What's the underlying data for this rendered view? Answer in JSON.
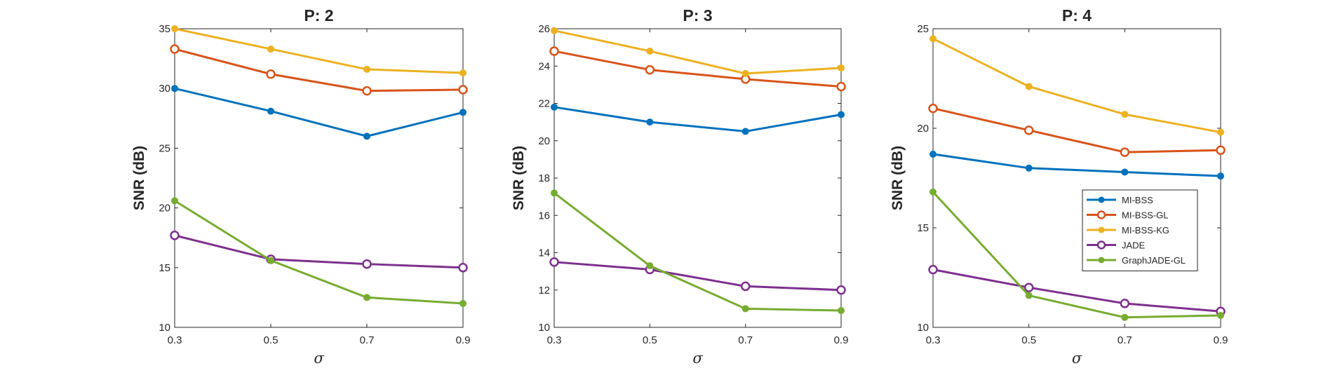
{
  "chart_data": [
    {
      "type": "line",
      "title": "P: 2",
      "xlabel": "σ",
      "ylabel": "SNR (dB)",
      "x": [
        0.3,
        0.5,
        0.7,
        0.9
      ],
      "xticks": [
        "0.3",
        "0.5",
        "0.7",
        "0.9"
      ],
      "ylim": [
        10,
        35
      ],
      "yticks": [
        10,
        15,
        20,
        25,
        30,
        35
      ],
      "grid": false,
      "series": [
        {
          "name": "MI-BSS",
          "color": "#0072BD",
          "marker": "dot",
          "values": [
            30.0,
            28.1,
            26.0,
            28.0
          ]
        },
        {
          "name": "MI-BSS-GL",
          "color": "#D95319",
          "marker": "circle",
          "values": [
            33.3,
            31.2,
            29.8,
            29.9
          ]
        },
        {
          "name": "MI-BSS-KG",
          "color": "#EDB120",
          "marker": "dot",
          "values": [
            35.0,
            33.3,
            31.6,
            31.3
          ]
        },
        {
          "name": "JADE",
          "color": "#7E2F8E",
          "marker": "circle",
          "values": [
            17.7,
            15.7,
            15.3,
            15.0
          ]
        },
        {
          "name": "GraphJADE-GL",
          "color": "#77AC30",
          "marker": "dot",
          "values": [
            20.6,
            15.6,
            12.5,
            12.0
          ]
        }
      ]
    },
    {
      "type": "line",
      "title": "P: 3",
      "xlabel": "σ",
      "ylabel": "SNR (dB)",
      "x": [
        0.3,
        0.5,
        0.7,
        0.9
      ],
      "xticks": [
        "0.3",
        "0.5",
        "0.7",
        "0.9"
      ],
      "ylim": [
        10,
        26
      ],
      "yticks": [
        10,
        12,
        14,
        16,
        18,
        20,
        22,
        24,
        26
      ],
      "grid": false,
      "series": [
        {
          "name": "MI-BSS",
          "color": "#0072BD",
          "marker": "dot",
          "values": [
            21.8,
            21.0,
            20.5,
            21.4
          ]
        },
        {
          "name": "MI-BSS-GL",
          "color": "#D95319",
          "marker": "circle",
          "values": [
            24.8,
            23.8,
            23.3,
            22.9
          ]
        },
        {
          "name": "MI-BSS-KG",
          "color": "#EDB120",
          "marker": "dot",
          "values": [
            25.9,
            24.8,
            23.6,
            23.9
          ]
        },
        {
          "name": "JADE",
          "color": "#7E2F8E",
          "marker": "circle",
          "values": [
            13.5,
            13.1,
            12.2,
            12.0
          ]
        },
        {
          "name": "GraphJADE-GL",
          "color": "#77AC30",
          "marker": "dot",
          "values": [
            17.2,
            13.3,
            11.0,
            10.9
          ]
        }
      ]
    },
    {
      "type": "line",
      "title": "P: 4",
      "xlabel": "σ",
      "ylabel": "SNR (dB)",
      "x": [
        0.3,
        0.5,
        0.7,
        0.9
      ],
      "xticks": [
        "0.3",
        "0.5",
        "0.7",
        "0.9"
      ],
      "ylim": [
        10,
        25
      ],
      "yticks": [
        10,
        15,
        20,
        25
      ],
      "grid": false,
      "legend_position": "center-right",
      "series": [
        {
          "name": "MI-BSS",
          "color": "#0072BD",
          "marker": "dot",
          "values": [
            18.7,
            18.0,
            17.8,
            17.6
          ]
        },
        {
          "name": "MI-BSS-GL",
          "color": "#D95319",
          "marker": "circle",
          "values": [
            21.0,
            19.9,
            18.8,
            18.9
          ]
        },
        {
          "name": "MI-BSS-KG",
          "color": "#EDB120",
          "marker": "dot",
          "values": [
            24.5,
            22.1,
            20.7,
            19.8
          ]
        },
        {
          "name": "JADE",
          "color": "#7E2F8E",
          "marker": "circle",
          "values": [
            12.9,
            12.0,
            11.2,
            10.8
          ]
        },
        {
          "name": "GraphJADE-GL",
          "color": "#77AC30",
          "marker": "dot",
          "values": [
            16.8,
            11.6,
            10.5,
            10.6
          ]
        }
      ]
    }
  ]
}
